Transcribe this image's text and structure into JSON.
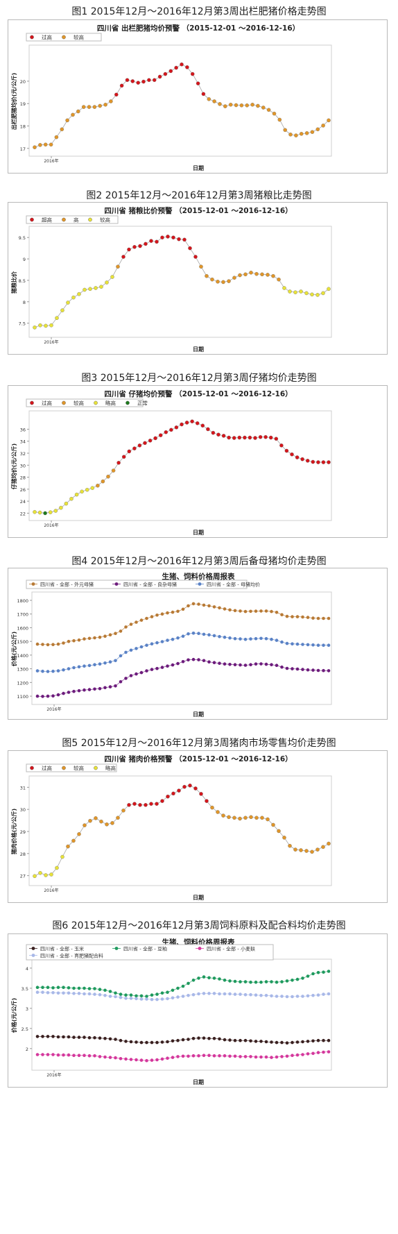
{
  "chart_data": [
    {
      "type": "scatter",
      "figure_caption": "图1 2015年12月～2016年12月第3周出栏肥猪价格走势图",
      "title": "四川省 出栏肥猪均价预警 （2015-12-01 ～2016-12-16）",
      "xlabel": "日期",
      "ylabel": "出栏肥猪均价(元/公斤)",
      "x_tick_label": "2016年",
      "ylim": [
        16.9,
        21.3
      ],
      "yticks": [
        17,
        18,
        19,
        20
      ],
      "grid": false,
      "legend_position": "top-left",
      "legend": [
        {
          "name": "过高",
          "color": "#d4161c"
        },
        {
          "name": "较高",
          "color": "#e0962a"
        }
      ],
      "series": [
        {
          "name": "出栏肥猪均价",
          "values": [
            17.05,
            17.15,
            17.17,
            17.17,
            17.5,
            17.85,
            18.25,
            18.5,
            18.65,
            18.85,
            18.85,
            18.85,
            18.9,
            18.95,
            19.1,
            19.4,
            19.8,
            20.05,
            20.0,
            19.93,
            19.98,
            20.05,
            20.05,
            20.2,
            20.32,
            20.45,
            20.6,
            20.75,
            20.62,
            20.32,
            19.9,
            19.43,
            19.2,
            19.1,
            18.98,
            18.88,
            18.95,
            18.93,
            18.92,
            18.92,
            18.95,
            18.9,
            18.82,
            18.72,
            18.55,
            18.28,
            17.82,
            17.62,
            17.58,
            17.65,
            17.68,
            17.73,
            17.85,
            18.02,
            18.25
          ],
          "levels": [
            "h",
            "h",
            "h",
            "h",
            "h",
            "h",
            "h",
            "h",
            "h",
            "h",
            "h",
            "h",
            "h",
            "h",
            "h",
            "e",
            "e",
            "e",
            "e",
            "e",
            "e",
            "e",
            "e",
            "e",
            "e",
            "e",
            "e",
            "e",
            "e",
            "e",
            "e",
            "e",
            "h",
            "h",
            "h",
            "h",
            "h",
            "h",
            "h",
            "h",
            "h",
            "h",
            "h",
            "h",
            "h",
            "h",
            "h",
            "h",
            "h",
            "h",
            "h",
            "h",
            "h",
            "h",
            "h"
          ]
        }
      ]
    },
    {
      "type": "scatter",
      "figure_caption": "图2 2015年12月～2016年12月第3周猪粮比走势图",
      "title": "四川省 猪粮比价预警 （2015-12-01 ～2016-12-16）",
      "xlabel": "日期",
      "ylabel": "猪粮比价",
      "x_tick_label": "2016年",
      "ylim": [
        7.3,
        9.6
      ],
      "yticks": [
        7.5,
        8.0,
        8.5,
        9.0,
        9.5
      ],
      "grid": false,
      "legend_position": "top-left",
      "legend": [
        {
          "name": "超高",
          "color": "#d4161c"
        },
        {
          "name": "高",
          "color": "#e0962a"
        },
        {
          "name": "较高",
          "color": "#e8e23a"
        }
      ],
      "series": [
        {
          "name": "猪粮比价",
          "values": [
            7.4,
            7.45,
            7.44,
            7.45,
            7.62,
            7.8,
            7.98,
            8.1,
            8.18,
            8.28,
            8.3,
            8.32,
            8.35,
            8.45,
            8.58,
            8.82,
            9.05,
            9.22,
            9.28,
            9.3,
            9.35,
            9.42,
            9.4,
            9.5,
            9.52,
            9.5,
            9.46,
            9.45,
            9.25,
            9.05,
            8.82,
            8.6,
            8.52,
            8.47,
            8.46,
            8.48,
            8.56,
            8.62,
            8.64,
            8.68,
            8.65,
            8.64,
            8.63,
            8.6,
            8.52,
            8.32,
            8.24,
            8.22,
            8.24,
            8.2,
            8.17,
            8.16,
            8.2,
            8.3
          ],
          "levels": [
            "m",
            "m",
            "m",
            "m",
            "m",
            "m",
            "m",
            "m",
            "m",
            "m",
            "m",
            "m",
            "m",
            "m",
            "m",
            "h",
            "e",
            "e",
            "e",
            "e",
            "e",
            "e",
            "e",
            "e",
            "e",
            "e",
            "e",
            "e",
            "e",
            "e",
            "h",
            "h",
            "h",
            "h",
            "h",
            "h",
            "h",
            "h",
            "h",
            "h",
            "h",
            "h",
            "h",
            "h",
            "h",
            "m",
            "m",
            "m",
            "m",
            "m",
            "m",
            "m",
            "m",
            "m"
          ]
        }
      ]
    },
    {
      "type": "scatter",
      "figure_caption": "图3 2015年12月～2016年12月第3周仔猪均价走势图",
      "title": "四川省 仔猪均价预警 （2015-12-01 ～2016-12-16）",
      "xlabel": "日期",
      "ylabel": "仔猪均价(元/公斤)",
      "x_tick_label": "2016年",
      "ylim": [
        21.7,
        37.9
      ],
      "yticks": [
        22,
        24,
        26,
        28,
        30,
        32,
        34,
        36
      ],
      "grid": false,
      "legend_position": "top-left",
      "legend": [
        {
          "name": "过高",
          "color": "#d4161c"
        },
        {
          "name": "较高",
          "color": "#e0962a"
        },
        {
          "name": "略高",
          "color": "#e8e23a"
        },
        {
          "name": "正常",
          "color": "#1e7a1e"
        }
      ],
      "series": [
        {
          "name": "仔猪均价",
          "values": [
            22.2,
            22.1,
            22.0,
            22.15,
            22.4,
            22.9,
            23.6,
            24.4,
            25.1,
            25.6,
            25.9,
            26.2,
            26.6,
            27.3,
            28.1,
            29.1,
            30.4,
            31.4,
            32.3,
            32.8,
            33.3,
            33.7,
            34.1,
            34.5,
            35.0,
            35.5,
            35.9,
            36.3,
            36.8,
            37.1,
            37.3,
            37.0,
            36.6,
            36.0,
            35.4,
            35.1,
            34.9,
            34.6,
            34.55,
            34.6,
            34.6,
            34.6,
            34.55,
            34.7,
            34.7,
            34.6,
            34.4,
            33.3,
            32.4,
            31.8,
            31.3,
            31.0,
            30.75,
            30.55,
            30.5,
            30.5,
            30.5
          ],
          "levels": [
            "m",
            "m",
            "n",
            "m",
            "m",
            "m",
            "m",
            "m",
            "m",
            "m",
            "m",
            "m",
            "h",
            "h",
            "h",
            "h",
            "e",
            "e",
            "e",
            "e",
            "e",
            "e",
            "e",
            "e",
            "e",
            "e",
            "e",
            "e",
            "e",
            "e",
            "e",
            "e",
            "e",
            "e",
            "e",
            "e",
            "e",
            "e",
            "e",
            "e",
            "e",
            "e",
            "e",
            "e",
            "e",
            "e",
            "e",
            "e",
            "e",
            "e",
            "e",
            "e",
            "e",
            "e",
            "e",
            "e",
            "e"
          ]
        }
      ]
    },
    {
      "type": "line",
      "figure_caption": "图4 2015年12月～2016年12月第3周后备母猪均价走势图",
      "title": "生猪、饲料价格周报表",
      "xlabel": "日期",
      "ylabel": "价格(元/公斤)",
      "x_tick_label": "2016年",
      "ylim": [
        1080,
        1810
      ],
      "yticks": [
        1100,
        1200,
        1300,
        1400,
        1500,
        1600,
        1700,
        1800
      ],
      "grid": false,
      "legend_position": "top",
      "series": [
        {
          "name": "四川省 - 全部 - 外元母猪",
          "color": "#b87a35",
          "values": [
            1480,
            1478,
            1476,
            1477,
            1480,
            1488,
            1500,
            1505,
            1510,
            1518,
            1522,
            1526,
            1530,
            1538,
            1548,
            1558,
            1575,
            1605,
            1625,
            1640,
            1655,
            1668,
            1680,
            1692,
            1700,
            1708,
            1713,
            1720,
            1735,
            1760,
            1775,
            1772,
            1765,
            1760,
            1752,
            1745,
            1737,
            1730,
            1725,
            1722,
            1718,
            1720,
            1721,
            1722,
            1722,
            1718,
            1712,
            1695,
            1683,
            1680,
            1680,
            1678,
            1675,
            1670,
            1668,
            1668,
            1668
          ]
        },
        {
          "name": "四川省 - 全部 - 良杂母猪",
          "color": "#6d1c7c",
          "values": [
            1100,
            1098,
            1100,
            1102,
            1110,
            1120,
            1128,
            1135,
            1140,
            1145,
            1148,
            1152,
            1155,
            1162,
            1168,
            1175,
            1205,
            1230,
            1250,
            1262,
            1272,
            1285,
            1295,
            1302,
            1310,
            1320,
            1328,
            1338,
            1352,
            1365,
            1368,
            1366,
            1360,
            1350,
            1345,
            1340,
            1335,
            1332,
            1330,
            1328,
            1326,
            1330,
            1335,
            1336,
            1333,
            1330,
            1325,
            1312,
            1303,
            1300,
            1298,
            1295,
            1292,
            1290,
            1288,
            1287,
            1286
          ]
        },
        {
          "name": "四川省 - 全部 - 母猪均价",
          "color": "#5a82c6",
          "values": [
            1285,
            1282,
            1280,
            1282,
            1285,
            1292,
            1300,
            1308,
            1314,
            1320,
            1324,
            1330,
            1335,
            1342,
            1350,
            1360,
            1395,
            1420,
            1436,
            1448,
            1460,
            1472,
            1482,
            1490,
            1498,
            1508,
            1515,
            1525,
            1538,
            1555,
            1560,
            1558,
            1552,
            1548,
            1542,
            1535,
            1530,
            1525,
            1520,
            1518,
            1515,
            1518,
            1520,
            1522,
            1520,
            1515,
            1508,
            1495,
            1485,
            1482,
            1480,
            1478,
            1476,
            1474,
            1472,
            1472,
            1472
          ]
        }
      ]
    },
    {
      "type": "scatter",
      "figure_caption": "图5 2015年12月～2016年12月第3周猪肉市场零售均价走势图",
      "title": "四川省 猪肉价格预警 （2015-12-01 ～2016-12-16）",
      "xlabel": "日期",
      "ylabel": "猪肉价格(元/公斤)",
      "x_tick_label": "2016年",
      "ylim": [
        26.8,
        31.2
      ],
      "yticks": [
        27,
        28,
        29,
        30,
        31
      ],
      "grid": false,
      "legend_position": "top-left",
      "legend": [
        {
          "name": "过高",
          "color": "#d4161c"
        },
        {
          "name": "较高",
          "color": "#e0962a"
        },
        {
          "name": "略高",
          "color": "#e8e23a"
        }
      ],
      "series": [
        {
          "name": "猪肉价格",
          "values": [
            26.98,
            27.12,
            27.02,
            27.05,
            27.35,
            27.85,
            28.32,
            28.58,
            28.88,
            29.28,
            29.48,
            29.6,
            29.45,
            29.32,
            29.38,
            29.62,
            29.95,
            30.2,
            30.25,
            30.2,
            30.2,
            30.25,
            30.25,
            30.38,
            30.58,
            30.72,
            30.85,
            31.02,
            31.08,
            30.95,
            30.7,
            30.38,
            30.08,
            29.88,
            29.72,
            29.65,
            29.62,
            29.58,
            29.62,
            29.65,
            29.62,
            29.62,
            29.55,
            29.3,
            29.02,
            28.72,
            28.35,
            28.18,
            28.15,
            28.12,
            28.08,
            28.18,
            28.3,
            28.45
          ],
          "levels": [
            "m",
            "m",
            "m",
            "m",
            "m",
            "m",
            "h",
            "h",
            "h",
            "h",
            "h",
            "h",
            "h",
            "h",
            "h",
            "h",
            "h",
            "e",
            "e",
            "e",
            "e",
            "e",
            "e",
            "e",
            "e",
            "e",
            "e",
            "e",
            "e",
            "e",
            "e",
            "e",
            "h",
            "h",
            "h",
            "h",
            "h",
            "h",
            "h",
            "h",
            "h",
            "h",
            "h",
            "h",
            "h",
            "h",
            "h",
            "h",
            "h",
            "h",
            "h",
            "h",
            "h",
            "h"
          ]
        }
      ]
    },
    {
      "type": "line",
      "figure_caption": "图6 2015年12月～2016年12月第3周饲料原料及配合料均价走势图",
      "title": "生猪、饲料价格周报表",
      "xlabel": "日期",
      "ylabel": "价格(元/公斤)",
      "x_tick_label": "2016年",
      "ylim": [
        1.6,
        4.05
      ],
      "yticks": [
        2.0,
        2.5,
        3.0,
        3.5,
        4.0
      ],
      "grid": false,
      "legend_position": "top",
      "series": [
        {
          "name": "四川省 - 全部 - 玉米",
          "color": "#3a2020",
          "values": [
            2.3,
            2.3,
            2.3,
            2.3,
            2.29,
            2.29,
            2.29,
            2.28,
            2.28,
            2.28,
            2.27,
            2.27,
            2.26,
            2.25,
            2.24,
            2.23,
            2.2,
            2.18,
            2.17,
            2.16,
            2.15,
            2.15,
            2.15,
            2.15,
            2.16,
            2.17,
            2.19,
            2.2,
            2.22,
            2.23,
            2.25,
            2.26,
            2.26,
            2.25,
            2.25,
            2.24,
            2.22,
            2.21,
            2.2,
            2.2,
            2.2,
            2.19,
            2.18,
            2.18,
            2.17,
            2.16,
            2.15,
            2.15,
            2.14,
            2.15,
            2.16,
            2.17,
            2.18,
            2.19,
            2.2,
            2.2,
            2.2
          ]
        },
        {
          "name": "四川省 - 全部 - 豆粕",
          "color": "#1f9a5e",
          "values": [
            3.52,
            3.52,
            3.52,
            3.51,
            3.52,
            3.52,
            3.51,
            3.5,
            3.5,
            3.5,
            3.49,
            3.49,
            3.47,
            3.45,
            3.42,
            3.38,
            3.35,
            3.33,
            3.33,
            3.31,
            3.31,
            3.3,
            3.33,
            3.35,
            3.38,
            3.4,
            3.45,
            3.5,
            3.55,
            3.62,
            3.7,
            3.75,
            3.78,
            3.76,
            3.75,
            3.73,
            3.7,
            3.68,
            3.67,
            3.66,
            3.66,
            3.65,
            3.65,
            3.65,
            3.66,
            3.66,
            3.65,
            3.66,
            3.68,
            3.7,
            3.72,
            3.75,
            3.8,
            3.86,
            3.89,
            3.9,
            3.92
          ]
        },
        {
          "name": "四川省 - 全部 - 小麦麸",
          "color": "#d4389c",
          "values": [
            1.85,
            1.85,
            1.85,
            1.85,
            1.84,
            1.84,
            1.84,
            1.83,
            1.83,
            1.83,
            1.82,
            1.82,
            1.8,
            1.79,
            1.78,
            1.77,
            1.75,
            1.74,
            1.73,
            1.72,
            1.71,
            1.7,
            1.71,
            1.72,
            1.74,
            1.76,
            1.78,
            1.8,
            1.81,
            1.81,
            1.82,
            1.82,
            1.83,
            1.83,
            1.82,
            1.82,
            1.82,
            1.81,
            1.81,
            1.8,
            1.8,
            1.8,
            1.79,
            1.79,
            1.79,
            1.78,
            1.79,
            1.8,
            1.81,
            1.83,
            1.84,
            1.85,
            1.87,
            1.88,
            1.9,
            1.91,
            1.92
          ]
        },
        {
          "name": "四川省 - 全部 - 育肥猪配合料",
          "color": "#a8b8e8",
          "values": [
            3.4,
            3.4,
            3.39,
            3.39,
            3.38,
            3.38,
            3.38,
            3.37,
            3.37,
            3.36,
            3.36,
            3.35,
            3.34,
            3.32,
            3.3,
            3.29,
            3.27,
            3.25,
            3.25,
            3.24,
            3.23,
            3.23,
            3.22,
            3.22,
            3.23,
            3.24,
            3.26,
            3.28,
            3.3,
            3.32,
            3.34,
            3.36,
            3.37,
            3.37,
            3.37,
            3.36,
            3.36,
            3.36,
            3.35,
            3.35,
            3.34,
            3.34,
            3.33,
            3.32,
            3.32,
            3.31,
            3.3,
            3.3,
            3.29,
            3.29,
            3.3,
            3.3,
            3.31,
            3.32,
            3.33,
            3.35,
            3.36
          ]
        }
      ]
    }
  ]
}
